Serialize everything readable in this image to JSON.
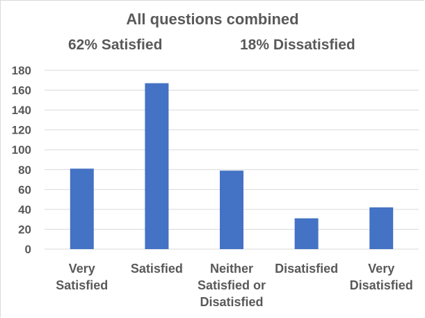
{
  "chart_data": {
    "type": "bar",
    "title": "All questions combined",
    "subtitle_left": "62% Satisfied",
    "subtitle_right": "18% Dissatisfied",
    "categories": [
      [
        "Very",
        "Satisfied"
      ],
      [
        "Satisfied"
      ],
      [
        "Neither",
        "Satisfied or",
        "Disatisfied"
      ],
      [
        "Disatisfied"
      ],
      [
        "Very",
        "Disatisfied"
      ]
    ],
    "values": [
      81,
      167,
      79,
      31,
      42
    ],
    "ylim": [
      0,
      180
    ],
    "yticks": [
      0,
      20,
      40,
      60,
      80,
      100,
      120,
      140,
      160,
      180
    ],
    "grid": true,
    "xlabel": "",
    "ylabel": "",
    "colors": {
      "bar": "#4472C4",
      "grid": "#d9d9d9",
      "text": "#595959"
    }
  }
}
